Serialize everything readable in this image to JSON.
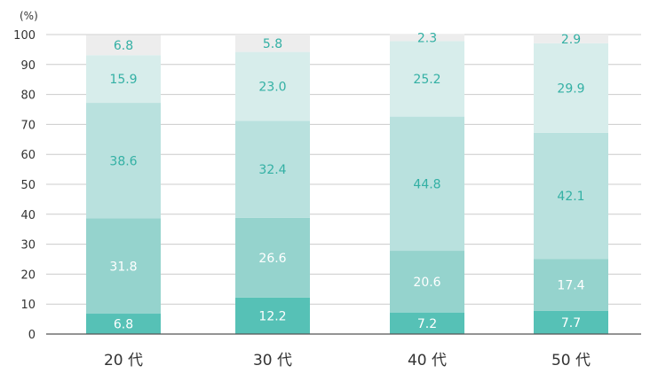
{
  "chart_data": {
    "type": "bar",
    "stacked": true,
    "unit_label": "(%)",
    "ylim": [
      0,
      100
    ],
    "yticks": [
      "0",
      "10",
      "20",
      "30",
      "40",
      "50",
      "60",
      "70",
      "80",
      "90",
      "100"
    ],
    "grid": true,
    "categories": [
      "20 代",
      "30 代",
      "40 代",
      "50 代"
    ],
    "series": [
      {
        "values": [
          6.8,
          12.2,
          7.2,
          7.7
        ],
        "labels": [
          "6.8",
          "12.2",
          "7.2",
          "7.7"
        ],
        "color": "#56c1b6",
        "label_color": "#ffffff"
      },
      {
        "values": [
          31.8,
          26.6,
          20.6,
          17.4
        ],
        "labels": [
          "31.8",
          "26.6",
          "20.6",
          "17.4"
        ],
        "color": "#95d3cd",
        "label_color": "#ffffff"
      },
      {
        "values": [
          38.6,
          32.4,
          44.8,
          42.1
        ],
        "labels": [
          "38.6",
          "32.4",
          "44.8",
          "42.1"
        ],
        "color": "#b9e1de",
        "label_color": "#33b0a4"
      },
      {
        "values": [
          15.9,
          23.0,
          25.2,
          29.9
        ],
        "labels": [
          "15.9",
          "23.0",
          "25.2",
          "29.9"
        ],
        "color": "#d7edeb",
        "label_color": "#33b0a4"
      },
      {
        "values": [
          6.8,
          5.8,
          2.3,
          2.9
        ],
        "labels": [
          "6.8",
          "5.8",
          "2.3",
          "2.9"
        ],
        "color": "#ededed",
        "label_color": "#33b0a4"
      }
    ],
    "colors": {
      "axis": "#555555",
      "grid": "#cccccc",
      "text": "#333333"
    }
  }
}
